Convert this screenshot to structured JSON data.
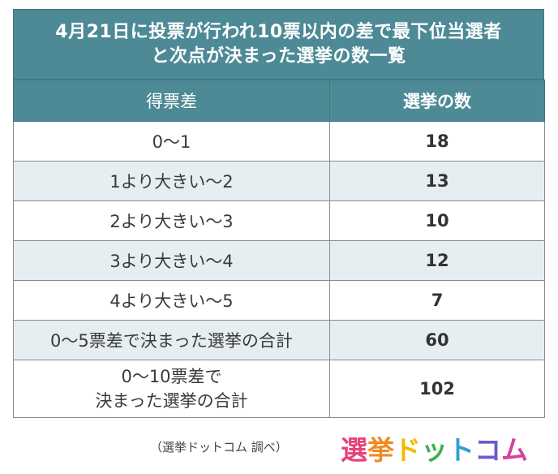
{
  "title": {
    "line1": "4月21日に投票が行われ10票以内の差で最下位当選者",
    "line2": "と次点が決まった選挙の数一覧"
  },
  "table": {
    "headers": [
      "得票差",
      "選挙の数"
    ],
    "rows": [
      {
        "range": "0～1",
        "count": "18"
      },
      {
        "range": "1より大きい～2",
        "count": "13"
      },
      {
        "range": "2より大きい～3",
        "count": "10"
      },
      {
        "range": "3より大きい～4",
        "count": "12"
      },
      {
        "range": "4より大きい～5",
        "count": "7"
      },
      {
        "range": "0～5票差で決まった選挙の合計",
        "count": "60"
      },
      {
        "range_line1": "0～10票差で",
        "range_line2": "決まった選挙の合計",
        "count": "102"
      }
    ]
  },
  "footer": {
    "note": "（選挙ドットコム 調べ）",
    "logo_chars": [
      "選",
      "挙",
      "ド",
      "ッ",
      "ト",
      "コ",
      "ム"
    ],
    "logo_colors": [
      "#e8417a",
      "#f08a24",
      "#f5b800",
      "#3fb24f",
      "#2f9fd8",
      "#6a5acd",
      "#d6409f"
    ]
  }
}
